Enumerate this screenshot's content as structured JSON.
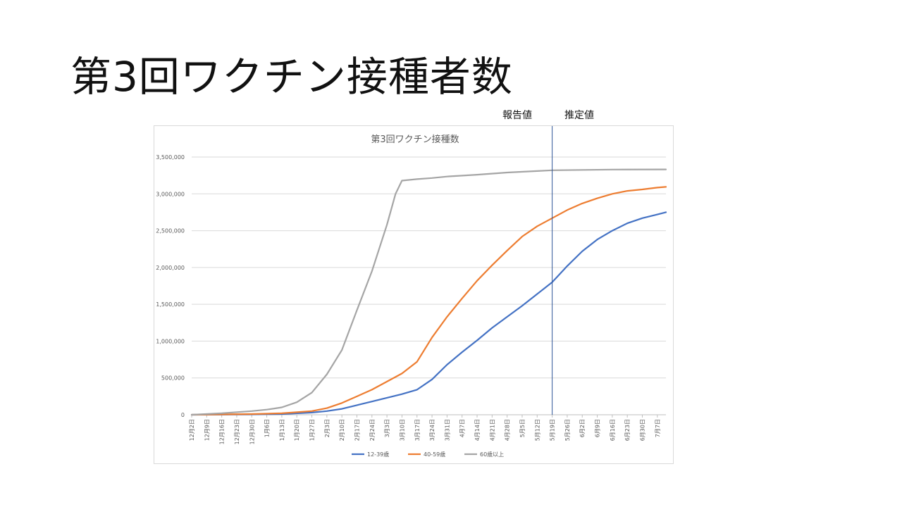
{
  "slide": {
    "title": "第3回ワクチン接種者数"
  },
  "annotations": {
    "reported": "報告値",
    "estimated": "推定値"
  },
  "chart_data": {
    "type": "line",
    "title": "第3回ワクチン接種数",
    "xlabel": "",
    "ylabel": "",
    "ylim": [
      0,
      3500000
    ],
    "yticks": [
      0,
      500000,
      1000000,
      1500000,
      2000000,
      2500000,
      3000000,
      3500000
    ],
    "ytick_labels": [
      "0",
      "500,000",
      "1,000,000",
      "1,500,000",
      "2,000,000",
      "2,500,000",
      "3,000,000",
      "3,500,000"
    ],
    "x_start": "12月2日",
    "x_end": "7月11日",
    "xtick_labels": [
      "12月2日",
      "12月9日",
      "12月16日",
      "12月23日",
      "12月30日",
      "1月6日",
      "1月13日",
      "1月20日",
      "1月27日",
      "2月3日",
      "2月10日",
      "2月17日",
      "2月24日",
      "3月3日",
      "3月10日",
      "3月17日",
      "3月24日",
      "3月31日",
      "4月7日",
      "4月14日",
      "4月21日",
      "4月28日",
      "5月5日",
      "5月12日",
      "5月19日",
      "5月26日",
      "6月2日",
      "6月9日",
      "6月16日",
      "6月23日",
      "6月30日",
      "7月7日"
    ],
    "divider_date": "5月19日",
    "grid": true,
    "legend_position": "bottom",
    "series": [
      {
        "name": "12-39歳",
        "color": "#4472c4",
        "points": [
          [
            "12月2日",
            0
          ],
          [
            "12月30日",
            5000
          ],
          [
            "1月13日",
            10000
          ],
          [
            "1月27日",
            30000
          ],
          [
            "2月3日",
            50000
          ],
          [
            "2月10日",
            80000
          ],
          [
            "2月17日",
            130000
          ],
          [
            "2月24日",
            180000
          ],
          [
            "3月3日",
            230000
          ],
          [
            "3月10日",
            280000
          ],
          [
            "3月17日",
            340000
          ],
          [
            "3月24日",
            480000
          ],
          [
            "3月31日",
            680000
          ],
          [
            "4月7日",
            850000
          ],
          [
            "4月14日",
            1010000
          ],
          [
            "4月21日",
            1180000
          ],
          [
            "4月28日",
            1330000
          ],
          [
            "5月5日",
            1480000
          ],
          [
            "5月12日",
            1640000
          ],
          [
            "5月19日",
            1800000
          ],
          [
            "5月26日",
            2020000
          ],
          [
            "6月2日",
            2220000
          ],
          [
            "6月9日",
            2380000
          ],
          [
            "6月16日",
            2500000
          ],
          [
            "6月23日",
            2600000
          ],
          [
            "6月30日",
            2670000
          ],
          [
            "7月7日",
            2720000
          ],
          [
            "7月11日",
            2750000
          ]
        ]
      },
      {
        "name": "40-59歳",
        "color": "#ed7d31",
        "points": [
          [
            "12月2日",
            0
          ],
          [
            "12月30日",
            10000
          ],
          [
            "1月13日",
            20000
          ],
          [
            "1月27日",
            50000
          ],
          [
            "2月3日",
            90000
          ],
          [
            "2月10日",
            160000
          ],
          [
            "2月17日",
            250000
          ],
          [
            "2月24日",
            340000
          ],
          [
            "3月3日",
            450000
          ],
          [
            "3月10日",
            560000
          ],
          [
            "3月17日",
            720000
          ],
          [
            "3月24日",
            1050000
          ],
          [
            "3月31日",
            1330000
          ],
          [
            "4月7日",
            1580000
          ],
          [
            "4月14日",
            1820000
          ],
          [
            "4月21日",
            2030000
          ],
          [
            "4月28日",
            2230000
          ],
          [
            "5月5日",
            2420000
          ],
          [
            "5月12日",
            2560000
          ],
          [
            "5月19日",
            2670000
          ],
          [
            "5月26日",
            2780000
          ],
          [
            "6月2日",
            2870000
          ],
          [
            "6月9日",
            2940000
          ],
          [
            "6月16日",
            3000000
          ],
          [
            "6月23日",
            3040000
          ],
          [
            "6月30日",
            3060000
          ],
          [
            "7月7日",
            3085000
          ],
          [
            "7月11日",
            3095000
          ]
        ]
      },
      {
        "name": "60歳以上",
        "color": "#a5a5a5",
        "points": [
          [
            "12月2日",
            0
          ],
          [
            "12月16日",
            20000
          ],
          [
            "12月30日",
            50000
          ],
          [
            "1月6日",
            70000
          ],
          [
            "1月13日",
            100000
          ],
          [
            "1月20日",
            170000
          ],
          [
            "1月27日",
            300000
          ],
          [
            "2月3日",
            550000
          ],
          [
            "2月10日",
            880000
          ],
          [
            "2月17日",
            1420000
          ],
          [
            "2月24日",
            1950000
          ],
          [
            "3月3日",
            2580000
          ],
          [
            "3月7日",
            3000000
          ],
          [
            "3月10日",
            3180000
          ],
          [
            "3月17日",
            3200000
          ],
          [
            "3月24日",
            3215000
          ],
          [
            "3月31日",
            3235000
          ],
          [
            "4月14日",
            3260000
          ],
          [
            "4月28日",
            3290000
          ],
          [
            "5月12日",
            3310000
          ],
          [
            "5月19日",
            3320000
          ],
          [
            "6月2日",
            3325000
          ],
          [
            "6月16日",
            3330000
          ],
          [
            "7月11日",
            3332000
          ]
        ]
      }
    ]
  }
}
